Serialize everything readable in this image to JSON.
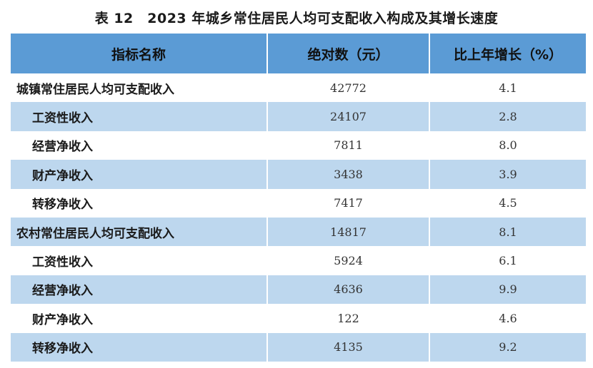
{
  "title": "表 12　2023 年城乡常住居民人均可支配收入构成及其增长速度",
  "header": {
    "col1": "指标名称",
    "col2": "绝对数（元）",
    "col3": "比上年增长（%）"
  },
  "rows": [
    {
      "name": "城镇常住居民人均可支配收入",
      "value": "42772",
      "growth": "4.1"
    },
    {
      "name": "工资性收入",
      "value": "24107",
      "growth": "2.8"
    },
    {
      "name": "经营净收入",
      "value": "7811",
      "growth": "8.0"
    },
    {
      "name": "财产净收入",
      "value": "3438",
      "growth": "3.9"
    },
    {
      "name": "转移净收入",
      "value": "7417",
      "growth": "4.5"
    },
    {
      "name": "农村常住居民人均可支配收入",
      "value": "14817",
      "growth": "8.1"
    },
    {
      "name": "工资性收入",
      "value": "5924",
      "growth": "6.1"
    },
    {
      "name": "经营净收入",
      "value": "4636",
      "growth": "9.9"
    },
    {
      "name": "财产净收入",
      "value": "122",
      "growth": "4.6"
    },
    {
      "name": "转移净收入",
      "value": "4135",
      "growth": "9.2"
    }
  ]
}
